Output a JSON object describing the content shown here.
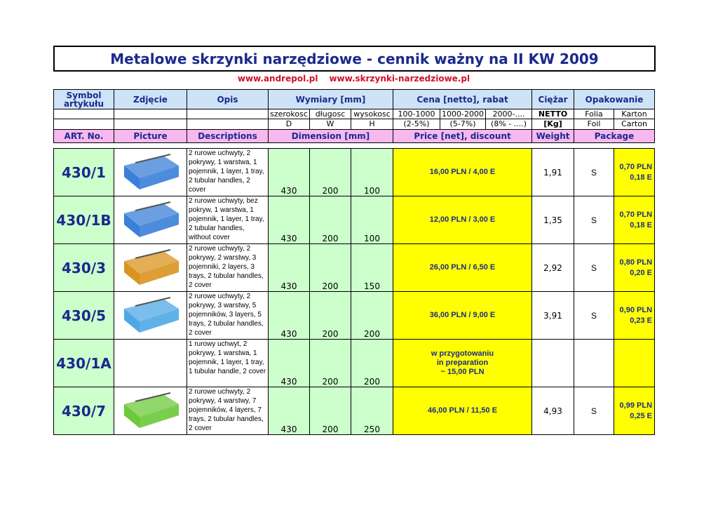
{
  "header": {
    "title": "Metalowe skrzynki narzędziowe - cennik ważny na II KW 2009",
    "links": [
      "www.andrepol.pl",
      "www.skrzynki-narzedziowe.pl"
    ]
  },
  "table": {
    "columns_pl": {
      "symbol": "Symbol artykułu",
      "picture": "Zdjęcie",
      "description": "Opis",
      "dimensions": "Wymiary [mm]",
      "price": "Cena [netto], rabat",
      "weight": "Ciężar",
      "package": "Opakowanie"
    },
    "subheaders": {
      "dims_pl": [
        "szerokosc",
        "długosc",
        "wysokosc"
      ],
      "dims": [
        "D",
        "W",
        "H"
      ],
      "price_ranges": [
        "100-1000",
        "1000-2000",
        "2000-...."
      ],
      "discounts": [
        "(2-5%)",
        "(5-7%)",
        "(8% - ....)"
      ],
      "weight_pl": "NETTO",
      "weight_unit": "[Kg]",
      "package_pl": [
        "Folia",
        "Karton"
      ],
      "package_en": [
        "Foil",
        "Carton"
      ]
    },
    "columns_en": {
      "symbol": "ART. No.",
      "picture": "Picture",
      "description": "Descriptions",
      "dimensions": "Dimension [mm]",
      "price": "Price [net], discount",
      "weight": "Weight",
      "package": "Package"
    },
    "rows": [
      {
        "symbol": "430/1",
        "description": "2 rurowe uchwyty, 2 pokrywy, 1 warstwa, 1 pojemnik, 1 layer, 1 tray, 2 tubular handles, 2 cover",
        "dims": [
          430,
          200,
          100
        ],
        "price": [
          "16,00 PLN / 4,00 E"
        ],
        "weight": "1,91",
        "foil": "S",
        "carton": [
          "0,70 PLN",
          "0,18 E"
        ]
      },
      {
        "symbol": "430/1B",
        "description": "2 rurowe uchwyty, bez pokryw, 1 warstwa, 1 pojemnik, 1 layer, 1 tray, 2 tubular handles, without cover",
        "dims": [
          430,
          200,
          100
        ],
        "price": [
          "12,00 PLN / 3,00 E"
        ],
        "weight": "1,35",
        "foil": "S",
        "carton": [
          "0,70 PLN",
          "0,18 E"
        ]
      },
      {
        "symbol": "430/3",
        "description": "2 rurowe uchwyty, 2 pokrywy, 2 warstwy, 3 pojemniki, 2 layers, 3 trays, 2 tubular handles, 2 cover",
        "dims": [
          430,
          200,
          150
        ],
        "price": [
          "26,00 PLN / 6,50 E"
        ],
        "weight": "2,92",
        "foil": "S",
        "carton": [
          "0,80 PLN",
          "0,20 E"
        ]
      },
      {
        "symbol": "430/5",
        "description": "2 rurowe uchwyty, 2 pokrywy, 3 warstwy, 5 pojemników, 3 layers, 5 trays, 2 tubular handles, 2 cover",
        "dims": [
          430,
          200,
          200
        ],
        "price": [
          "36,00 PLN / 9,00 E"
        ],
        "weight": "3,91",
        "foil": "S",
        "carton": [
          "0,90 PLN",
          "0,23 E"
        ]
      },
      {
        "symbol": "430/1A",
        "description": "1 rurowy uchwyt, 2 pokrywy, 1 warstwa, 1 pojemnik, 1 layer, 1 tray, 1 tubular handle, 2 cover",
        "dims": [
          430,
          200,
          200
        ],
        "price": [
          "w przygotowaniu",
          "in preparation",
          "~ 15,00 PLN"
        ]
      },
      {
        "symbol": "430/7",
        "description": "2 rurowe uchwyty, 2 pokrywy, 4 warstwy, 7 pojemników, 4 layers, 7 trays, 2 tubular handles, 2 cover",
        "dims": [
          430,
          200,
          250
        ],
        "price": [
          "46,00 PLN / 11,50 E"
        ],
        "weight": "4,93",
        "foil": "S",
        "carton": [
          "0,99 PLN",
          "0,25 E"
        ]
      }
    ]
  }
}
